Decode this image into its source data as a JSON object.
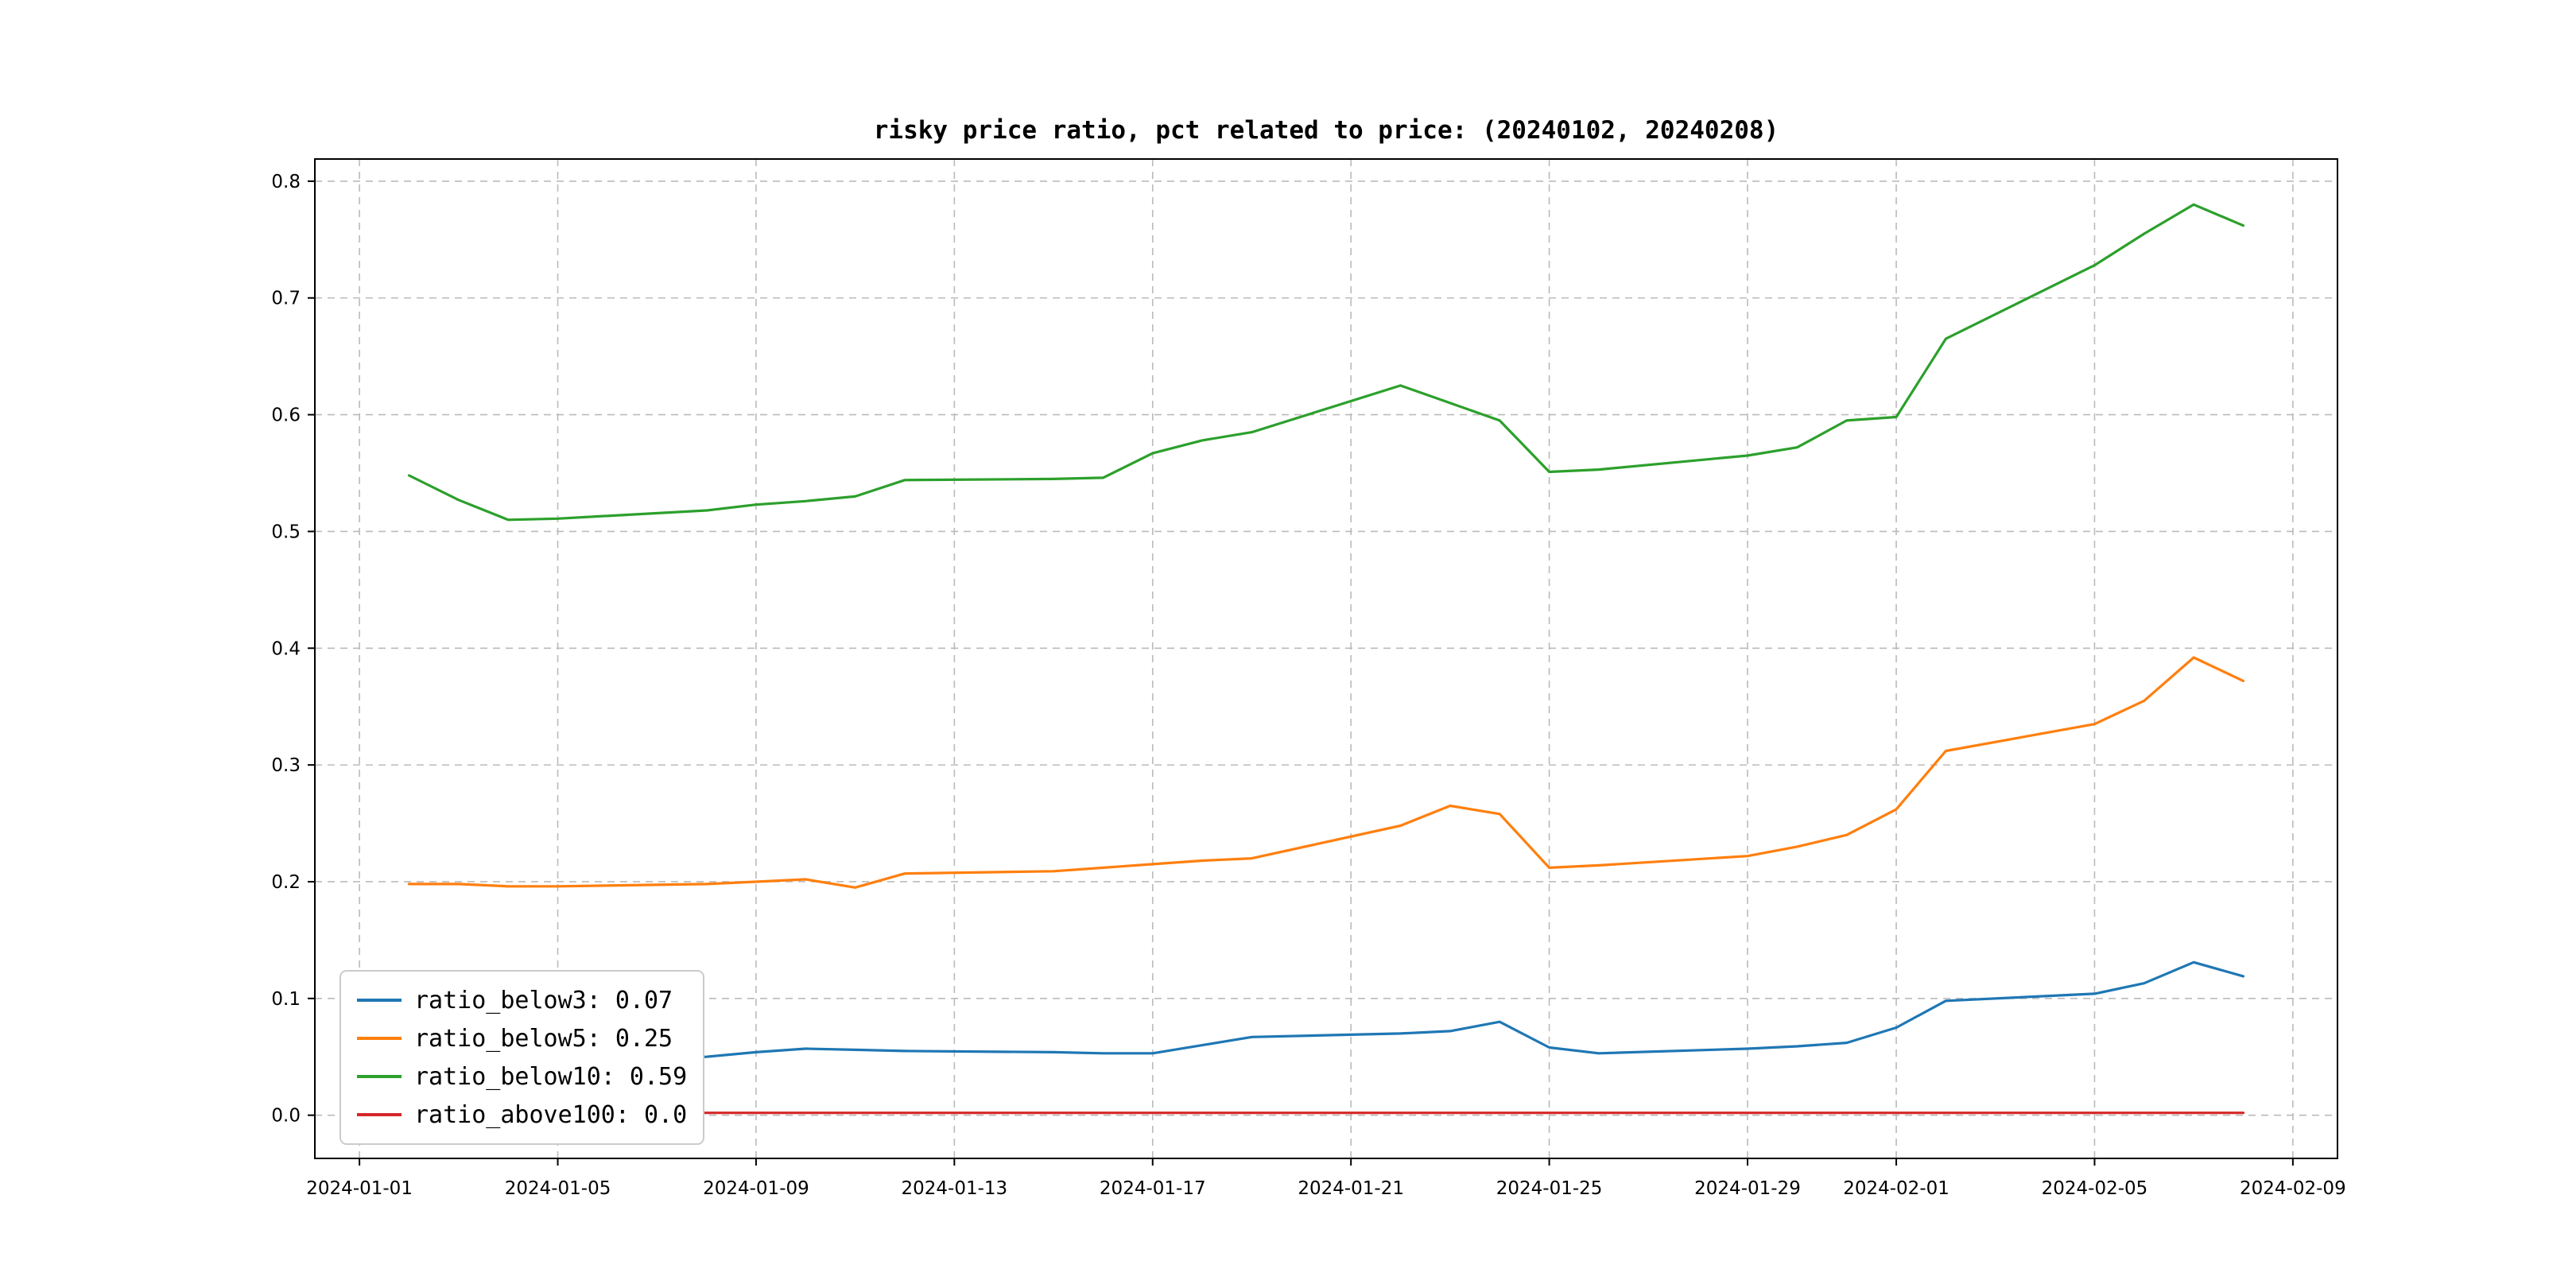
{
  "chart_data": {
    "type": "line",
    "title": "risky price ratio, pct related to price: (20240102, 20240208)",
    "x_start_date": "2024-01-01",
    "xlim_days": [
      -0.9,
      39.9
    ],
    "ylim": [
      -0.037,
      0.819
    ],
    "grid": true,
    "grid_color": "#bbbbbb",
    "legend_position": "lower left",
    "x_tick_labels": [
      "2024-01-01",
      "2024-01-05",
      "2024-01-09",
      "2024-01-13",
      "2024-01-17",
      "2024-01-21",
      "2024-01-25",
      "2024-01-29",
      "2024-02-01",
      "2024-02-05",
      "2024-02-09"
    ],
    "y_ticks": [
      0.0,
      0.1,
      0.2,
      0.3,
      0.4,
      0.5,
      0.6,
      0.7,
      0.8
    ],
    "x": [
      "2024-01-02",
      "2024-01-03",
      "2024-01-04",
      "2024-01-05",
      "2024-01-08",
      "2024-01-09",
      "2024-01-10",
      "2024-01-11",
      "2024-01-12",
      "2024-01-15",
      "2024-01-16",
      "2024-01-17",
      "2024-01-18",
      "2024-01-19",
      "2024-01-22",
      "2024-01-23",
      "2024-01-24",
      "2024-01-25",
      "2024-01-26",
      "2024-01-29",
      "2024-01-30",
      "2024-01-31",
      "2024-02-01",
      "2024-02-02",
      "2024-02-05",
      "2024-02-06",
      "2024-02-07",
      "2024-02-08"
    ],
    "series": [
      {
        "label": "ratio_below3: 0.07",
        "color": "#1f77b4",
        "values": [
          0.05,
          0.045,
          0.043,
          0.044,
          0.05,
          0.054,
          0.057,
          0.056,
          0.055,
          0.054,
          0.053,
          0.053,
          0.06,
          0.067,
          0.07,
          0.072,
          0.08,
          0.058,
          0.053,
          0.057,
          0.059,
          0.062,
          0.075,
          0.098,
          0.104,
          0.113,
          0.131,
          0.119
        ]
      },
      {
        "label": "ratio_below5: 0.25",
        "color": "#ff7f0e",
        "values": [
          0.198,
          0.198,
          0.196,
          0.196,
          0.198,
          0.2,
          0.202,
          0.195,
          0.207,
          0.209,
          0.212,
          0.215,
          0.218,
          0.22,
          0.248,
          0.265,
          0.258,
          0.212,
          0.214,
          0.222,
          0.23,
          0.24,
          0.262,
          0.312,
          0.335,
          0.355,
          0.392,
          0.372
        ]
      },
      {
        "label": "ratio_below10: 0.59",
        "color": "#2ca02c",
        "values": [
          0.548,
          0.527,
          0.51,
          0.511,
          0.518,
          0.523,
          0.526,
          0.53,
          0.544,
          0.545,
          0.546,
          0.567,
          0.578,
          0.585,
          0.625,
          0.61,
          0.595,
          0.551,
          0.553,
          0.565,
          0.572,
          0.595,
          0.598,
          0.665,
          0.728,
          0.755,
          0.78,
          0.762
        ]
      },
      {
        "label": "ratio_above100: 0.0",
        "color": "#d62728",
        "values": [
          0.002,
          0.002,
          0.002,
          0.002,
          0.002,
          0.002,
          0.002,
          0.002,
          0.002,
          0.002,
          0.002,
          0.002,
          0.002,
          0.002,
          0.002,
          0.002,
          0.002,
          0.002,
          0.002,
          0.002,
          0.002,
          0.002,
          0.002,
          0.002,
          0.002,
          0.002,
          0.002,
          0.002
        ]
      }
    ]
  }
}
